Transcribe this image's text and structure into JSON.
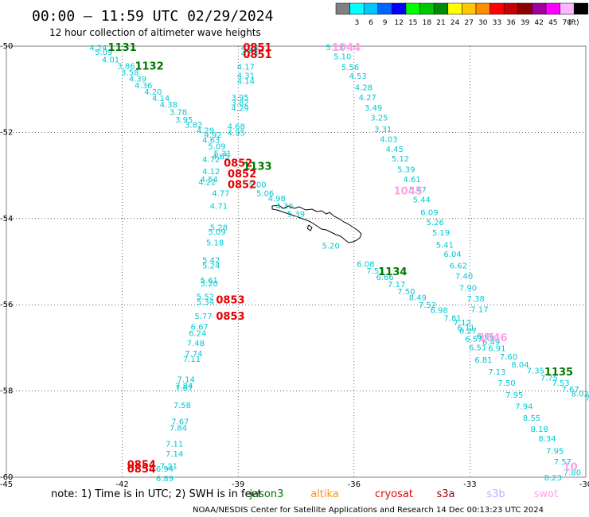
{
  "header": {
    "title": "00:00 – 11:59 UTC 02/29/2024",
    "subtitle": "12 hour collection of altimeter wave heights"
  },
  "legend": {
    "unit": "(ft)",
    "bins": [
      {
        "label": "",
        "color": "#808080"
      },
      {
        "label": "3",
        "color": "#00ffff"
      },
      {
        "label": "6",
        "color": "#00c8ff"
      },
      {
        "label": "9",
        "color": "#0064ff"
      },
      {
        "label": "12",
        "color": "#0000ff"
      },
      {
        "label": "15",
        "color": "#00ff00"
      },
      {
        "label": "18",
        "color": "#00c800"
      },
      {
        "label": "21",
        "color": "#008c00"
      },
      {
        "label": "24",
        "color": "#ffff00"
      },
      {
        "label": "27",
        "color": "#ffc800"
      },
      {
        "label": "30",
        "color": "#ff8c00"
      },
      {
        "label": "33",
        "color": "#ff0000"
      },
      {
        "label": "36",
        "color": "#c80000"
      },
      {
        "label": "39",
        "color": "#8c0000"
      },
      {
        "label": "42",
        "color": "#a000a0"
      },
      {
        "label": "45",
        "color": "#ff00ff"
      },
      {
        "label": "70",
        "color": "#ffb4ff"
      },
      {
        "label": "",
        "color": "#000000"
      }
    ]
  },
  "axes": {
    "x_ticks": [
      "-45",
      "-42",
      "-39",
      "-36",
      "-33",
      "-30"
    ],
    "y_ticks": [
      "-50",
      "-52",
      "-54",
      "-56",
      "-58",
      "-60"
    ]
  },
  "colors": {
    "swh_low": "#00c8d2",
    "jason3": "#007800",
    "altika": "#ff9600",
    "cryosat": "#e60000",
    "s3a": "#a00000",
    "s3b": "#b4b4ff",
    "swot": "#ffa0e6"
  },
  "footer": {
    "note": "note:  1) Time is in UTC; 2) SWH is in feet",
    "satellites": [
      {
        "name": "jason3",
        "color": "#007800"
      },
      {
        "name": "altika",
        "color": "#ff9600"
      },
      {
        "name": "cryosat",
        "color": "#e60000"
      },
      {
        "name": "s3a",
        "color": "#a00000"
      },
      {
        "name": "s3b",
        "color": "#b4b4ff"
      },
      {
        "name": "swot",
        "color": "#ffa0e6"
      }
    ],
    "credit": "NOAA/NESDIS Center for Satellite Applications and Research    14 Dec 00:13:23 UTC 2024"
  },
  "map": {
    "lon_range": [
      -45,
      -30
    ],
    "lat_range": [
      -60,
      -50
    ],
    "passes": [
      {
        "label": "1131",
        "lon": -42.0,
        "lat": -50.02,
        "color": "#007800"
      },
      {
        "label": "1132",
        "lon": -41.3,
        "lat": -50.45,
        "color": "#007800"
      },
      {
        "label": "0851",
        "lon": -38.5,
        "lat": -50.02,
        "color": "#e60000"
      },
      {
        "label": "0851",
        "lon": -38.5,
        "lat": -50.18,
        "color": "#e60000"
      },
      {
        "label": "1044",
        "lon": -36.2,
        "lat": -50.02,
        "color": "#ffa0e6"
      },
      {
        "label": "0852",
        "lon": -39.0,
        "lat": -52.7,
        "color": "#e60000"
      },
      {
        "label": "1133",
        "lon": -38.5,
        "lat": -52.78,
        "color": "#007800"
      },
      {
        "label": "0852",
        "lon": -38.9,
        "lat": -52.95,
        "color": "#e60000"
      },
      {
        "label": "0852",
        "lon": -38.9,
        "lat": -53.2,
        "color": "#e60000"
      },
      {
        "label": "1045",
        "lon": -34.6,
        "lat": -53.35,
        "color": "#ffa0e6"
      },
      {
        "label": "1134",
        "lon": -35.0,
        "lat": -55.22,
        "color": "#007800"
      },
      {
        "label": "0853",
        "lon": -39.2,
        "lat": -55.88,
        "color": "#e60000"
      },
      {
        "label": "0853",
        "lon": -39.2,
        "lat": -56.25,
        "color": "#e60000"
      },
      {
        "label": "1046",
        "lon": -32.4,
        "lat": -56.75,
        "color": "#ffa0e6"
      },
      {
        "label": "1135",
        "lon": -30.7,
        "lat": -57.55,
        "color": "#007800"
      },
      {
        "label": "0854",
        "lon": -41.5,
        "lat": -59.7,
        "color": "#e60000"
      },
      {
        "label": "0854",
        "lon": -41.5,
        "lat": -59.8,
        "color": "#e60000"
      },
      {
        "label": "10",
        "lon": -30.4,
        "lat": -59.75,
        "color": "#ffa0e6"
      }
    ],
    "swh": [
      {
        "v": "4.24",
        "lon": -42.62,
        "lat": -50.03
      },
      {
        "v": "5.09",
        "lon": -42.48,
        "lat": -50.13
      },
      {
        "v": "4.01",
        "lon": -42.3,
        "lat": -50.3
      },
      {
        "v": "3.86",
        "lon": -41.9,
        "lat": -50.45
      },
      {
        "v": "3.58",
        "lon": -41.8,
        "lat": -50.6
      },
      {
        "v": "4.39",
        "lon": -41.6,
        "lat": -50.75
      },
      {
        "v": "4.36",
        "lon": -41.45,
        "lat": -50.9
      },
      {
        "v": "4.20",
        "lon": -41.2,
        "lat": -51.05
      },
      {
        "v": "4.14",
        "lon": -41.0,
        "lat": -51.2
      },
      {
        "v": "4.38",
        "lon": -40.8,
        "lat": -51.35
      },
      {
        "v": "3.78",
        "lon": -40.55,
        "lat": -51.52
      },
      {
        "v": "3.95",
        "lon": -40.4,
        "lat": -51.7
      },
      {
        "v": "3.82",
        "lon": -40.15,
        "lat": -51.82
      },
      {
        "v": "4.29",
        "lon": -39.85,
        "lat": -51.95
      },
      {
        "v": "4.92",
        "lon": -39.65,
        "lat": -52.05
      },
      {
        "v": "4.63",
        "lon": -39.7,
        "lat": -52.17
      },
      {
        "v": "5.09",
        "lon": -39.55,
        "lat": -52.32
      },
      {
        "v": "5.31",
        "lon": -39.4,
        "lat": -52.48
      },
      {
        "v": "4.72",
        "lon": -39.7,
        "lat": -52.62
      },
      {
        "v": "4.85",
        "lon": -39.45,
        "lat": -52.55
      },
      {
        "v": "4.12",
        "lon": -39.7,
        "lat": -52.9
      },
      {
        "v": "4.54",
        "lon": -39.75,
        "lat": -53.08
      },
      {
        "v": "4.22",
        "lon": -39.8,
        "lat": -53.15
      },
      {
        "v": "5.00",
        "lon": -38.5,
        "lat": -53.2
      },
      {
        "v": "5.06",
        "lon": -38.3,
        "lat": -53.4
      },
      {
        "v": "4.98",
        "lon": -38.0,
        "lat": -53.52
      },
      {
        "v": "4.36",
        "lon": -37.8,
        "lat": -53.7
      },
      {
        "v": "5.39",
        "lon": -37.5,
        "lat": -53.88
      },
      {
        "v": "4.24",
        "lon": -38.7,
        "lat": -50.03
      },
      {
        "v": "4.54",
        "lon": -38.7,
        "lat": -50.16
      },
      {
        "v": "4.17",
        "lon": -38.8,
        "lat": -50.47
      },
      {
        "v": "4.31",
        "lon": -38.8,
        "lat": -50.67
      },
      {
        "v": "4.14",
        "lon": -38.8,
        "lat": -50.8
      },
      {
        "v": "3.95",
        "lon": -38.95,
        "lat": -51.18
      },
      {
        "v": "3.82",
        "lon": -38.95,
        "lat": -51.3
      },
      {
        "v": "4.29",
        "lon": -38.95,
        "lat": -51.43
      },
      {
        "v": "4.68",
        "lon": -39.05,
        "lat": -51.85
      },
      {
        "v": "4.95",
        "lon": -39.05,
        "lat": -52.0
      },
      {
        "v": "4.77",
        "lon": -39.45,
        "lat": -53.4
      },
      {
        "v": "4.71",
        "lon": -39.5,
        "lat": -53.7
      },
      {
        "v": "5.28",
        "lon": -39.5,
        "lat": -54.2
      },
      {
        "v": "5.09",
        "lon": -39.55,
        "lat": -54.3
      },
      {
        "v": "5.18",
        "lon": -39.6,
        "lat": -54.55
      },
      {
        "v": "5.42",
        "lon": -39.7,
        "lat": -54.95
      },
      {
        "v": "5.24",
        "lon": -39.7,
        "lat": -55.08
      },
      {
        "v": "5.61",
        "lon": -39.75,
        "lat": -55.42
      },
      {
        "v": "5.20",
        "lon": -39.75,
        "lat": -55.5
      },
      {
        "v": "5.52",
        "lon": -39.85,
        "lat": -55.8
      },
      {
        "v": "5.34",
        "lon": -39.85,
        "lat": -55.92
      },
      {
        "v": "5.77",
        "lon": -39.9,
        "lat": -56.25
      },
      {
        "v": "6.67",
        "lon": -40.0,
        "lat": -56.5
      },
      {
        "v": "6.24",
        "lon": -40.05,
        "lat": -56.65
      },
      {
        "v": "7.48",
        "lon": -40.1,
        "lat": -56.88
      },
      {
        "v": "7.74",
        "lon": -40.15,
        "lat": -57.12
      },
      {
        "v": "7.11",
        "lon": -40.2,
        "lat": -57.25
      },
      {
        "v": "7.14",
        "lon": -40.35,
        "lat": -57.72
      },
      {
        "v": "7.84",
        "lon": -40.4,
        "lat": -57.87
      },
      {
        "v": "7.67",
        "lon": -40.4,
        "lat": -57.92
      },
      {
        "v": "7.58",
        "lon": -40.45,
        "lat": -58.32
      },
      {
        "v": "7.67",
        "lon": -40.5,
        "lat": -58.7
      },
      {
        "v": "7.84",
        "lon": -40.55,
        "lat": -58.85
      },
      {
        "v": "7.11",
        "lon": -40.65,
        "lat": -59.22
      },
      {
        "v": "7.14",
        "lon": -40.65,
        "lat": -59.45
      },
      {
        "v": "7.21",
        "lon": -40.8,
        "lat": -59.73
      },
      {
        "v": "6.94",
        "lon": -40.9,
        "lat": -59.8
      },
      {
        "v": "6.89",
        "lon": -40.9,
        "lat": -60.02
      },
      {
        "v": "5.13",
        "lon": -36.5,
        "lat": -50.02
      },
      {
        "v": "5.10",
        "lon": -36.3,
        "lat": -50.23
      },
      {
        "v": "5.56",
        "lon": -36.1,
        "lat": -50.48
      },
      {
        "v": "4.53",
        "lon": -35.9,
        "lat": -50.68
      },
      {
        "v": "4.28",
        "lon": -35.75,
        "lat": -50.95
      },
      {
        "v": "4.27",
        "lon": -35.65,
        "lat": -51.18
      },
      {
        "v": "3.49",
        "lon": -35.5,
        "lat": -51.42
      },
      {
        "v": "3.25",
        "lon": -35.35,
        "lat": -51.65
      },
      {
        "v": "3.31",
        "lon": -35.25,
        "lat": -51.92
      },
      {
        "v": "4.03",
        "lon": -35.1,
        "lat": -52.15
      },
      {
        "v": "4.45",
        "lon": -34.95,
        "lat": -52.38
      },
      {
        "v": "5.12",
        "lon": -34.8,
        "lat": -52.6
      },
      {
        "v": "5.39",
        "lon": -34.65,
        "lat": -52.85
      },
      {
        "v": "4.61",
        "lon": -34.5,
        "lat": -53.08
      },
      {
        "v": "5.47",
        "lon": -34.35,
        "lat": -53.32
      },
      {
        "v": "5.44",
        "lon": -34.25,
        "lat": -53.55
      },
      {
        "v": "6.09",
        "lon": -34.05,
        "lat": -53.85
      },
      {
        "v": "5.26",
        "lon": -33.9,
        "lat": -54.08
      },
      {
        "v": "5.19",
        "lon": -33.75,
        "lat": -54.32
      },
      {
        "v": "5.41",
        "lon": -33.65,
        "lat": -54.6
      },
      {
        "v": "6.04",
        "lon": -33.45,
        "lat": -54.82
      },
      {
        "v": "6.62",
        "lon": -33.3,
        "lat": -55.08
      },
      {
        "v": "7.40",
        "lon": -33.15,
        "lat": -55.32
      },
      {
        "v": "7.90",
        "lon": -33.05,
        "lat": -55.6
      },
      {
        "v": "7.38",
        "lon": -32.85,
        "lat": -55.85
      },
      {
        "v": "7.17",
        "lon": -32.75,
        "lat": -56.1
      },
      {
        "v": "5.20",
        "lon": -36.6,
        "lat": -54.62
      },
      {
        "v": "6.08",
        "lon": -35.7,
        "lat": -55.05
      },
      {
        "v": "7.53",
        "lon": -35.45,
        "lat": -55.2
      },
      {
        "v": "6.66",
        "lon": -35.2,
        "lat": -55.35
      },
      {
        "v": "7.17",
        "lon": -34.9,
        "lat": -55.52
      },
      {
        "v": "7.50",
        "lon": -34.65,
        "lat": -55.68
      },
      {
        "v": "8.49",
        "lon": -34.35,
        "lat": -55.82
      },
      {
        "v": "7.52",
        "lon": -34.1,
        "lat": -56.0
      },
      {
        "v": "6.98",
        "lon": -33.8,
        "lat": -56.12
      },
      {
        "v": "7.81",
        "lon": -33.45,
        "lat": -56.3
      },
      {
        "v": "7.12",
        "lon": -33.2,
        "lat": -56.4
      },
      {
        "v": "6.11",
        "lon": -33.1,
        "lat": -56.52
      },
      {
        "v": "6.27",
        "lon": -33.05,
        "lat": -56.6
      },
      {
        "v": "6.66",
        "lon": -32.6,
        "lat": -56.72
      },
      {
        "v": "6.57",
        "lon": -32.9,
        "lat": -56.78
      },
      {
        "v": "6.49",
        "lon": -32.45,
        "lat": -56.85
      },
      {
        "v": "6.51",
        "lon": -32.8,
        "lat": -56.98
      },
      {
        "v": "6.91",
        "lon": -32.3,
        "lat": -57.0
      },
      {
        "v": "6.81",
        "lon": -32.65,
        "lat": -57.27
      },
      {
        "v": "7.60",
        "lon": -32.0,
        "lat": -57.2
      },
      {
        "v": "8.04",
        "lon": -31.7,
        "lat": -57.38
      },
      {
        "v": "7.35",
        "lon": -31.3,
        "lat": -57.52
      },
      {
        "v": "7.75",
        "lon": -30.95,
        "lat": -57.68
      },
      {
        "v": "7.53",
        "lon": -30.65,
        "lat": -57.8
      },
      {
        "v": "7.67",
        "lon": -30.4,
        "lat": -57.95
      },
      {
        "v": "8.02",
        "lon": -30.15,
        "lat": -58.05
      },
      {
        "v": "7.5",
        "lon": -29.85,
        "lat": -58.15
      },
      {
        "v": "7.13",
        "lon": -32.3,
        "lat": -57.55
      },
      {
        "v": "7.50",
        "lon": -32.05,
        "lat": -57.8
      },
      {
        "v": "7.95",
        "lon": -31.85,
        "lat": -58.08
      },
      {
        "v": "7.94",
        "lon": -31.6,
        "lat": -58.35
      },
      {
        "v": "8.55",
        "lon": -31.4,
        "lat": -58.62
      },
      {
        "v": "8.18",
        "lon": -31.2,
        "lat": -58.87
      },
      {
        "v": "8.34",
        "lon": -31.0,
        "lat": -59.1
      },
      {
        "v": "7.95",
        "lon": -30.8,
        "lat": -59.38
      },
      {
        "v": "7.57",
        "lon": -30.6,
        "lat": -59.63
      },
      {
        "v": "7.80",
        "lon": -30.35,
        "lat": -59.88
      },
      {
        "v": "8.23",
        "lon": -30.85,
        "lat": -60.0
      }
    ]
  }
}
